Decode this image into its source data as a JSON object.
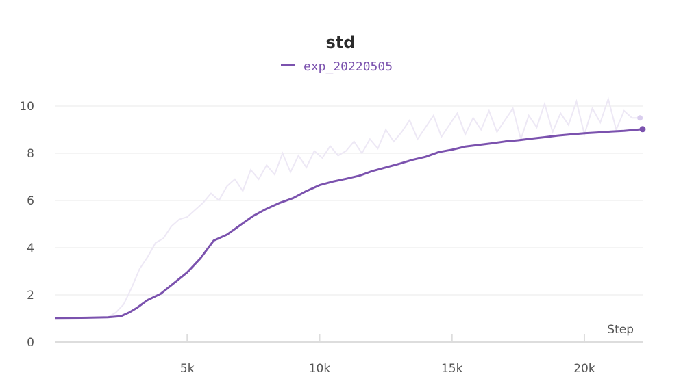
{
  "chart_data": {
    "type": "line",
    "title": "std",
    "xlabel": "Step",
    "ylabel": "",
    "xlim": [
      0,
      22200
    ],
    "ylim": [
      0,
      10
    ],
    "x_ticks": [
      5000,
      10000,
      15000,
      20000
    ],
    "x_tick_labels": [
      "5k",
      "10k",
      "15k",
      "20k"
    ],
    "y_ticks": [
      0,
      2,
      4,
      6,
      8,
      10
    ],
    "y_tick_labels": [
      "0",
      "2",
      "4",
      "6",
      "8",
      "10"
    ],
    "grid": true,
    "legend": "top-center",
    "colors": {
      "series": "#7b52ae",
      "raw": "#ede8f5",
      "raw_end": "#d9cdee"
    },
    "series": [
      {
        "name": "exp_20220505",
        "smoothed": {
          "x": [
            0,
            1000,
            2000,
            2500,
            2800,
            3100,
            3500,
            4000,
            4500,
            5000,
            5500,
            6000,
            6500,
            7000,
            7500,
            8000,
            8500,
            9000,
            9500,
            10000,
            10500,
            11000,
            11500,
            12000,
            12500,
            13000,
            13500,
            14000,
            14500,
            15000,
            15500,
            16000,
            16500,
            17000,
            17500,
            18000,
            18500,
            19000,
            19500,
            20000,
            20500,
            21000,
            21500,
            22000,
            22200
          ],
          "y": [
            1.02,
            1.03,
            1.05,
            1.1,
            1.25,
            1.45,
            1.78,
            2.05,
            2.5,
            2.95,
            3.55,
            4.3,
            4.55,
            4.95,
            5.35,
            5.65,
            5.9,
            6.1,
            6.4,
            6.65,
            6.8,
            6.92,
            7.05,
            7.25,
            7.4,
            7.55,
            7.72,
            7.85,
            8.05,
            8.15,
            8.28,
            8.35,
            8.42,
            8.5,
            8.55,
            8.62,
            8.68,
            8.75,
            8.8,
            8.85,
            8.88,
            8.92,
            8.95,
            9.0,
            9.02
          ]
        },
        "raw": {
          "x": [
            0,
            1000,
            2000,
            2300,
            2600,
            2900,
            3200,
            3500,
            3800,
            4100,
            4400,
            4700,
            5000,
            5300,
            5600,
            5900,
            6200,
            6500,
            6800,
            7100,
            7400,
            7700,
            8000,
            8300,
            8600,
            8900,
            9200,
            9500,
            9800,
            10100,
            10400,
            10700,
            11000,
            11300,
            11600,
            11900,
            12200,
            12500,
            12800,
            13100,
            13400,
            13700,
            14000,
            14300,
            14600,
            14900,
            15200,
            15500,
            15800,
            16100,
            16400,
            16700,
            17000,
            17300,
            17600,
            17900,
            18200,
            18500,
            18800,
            19100,
            19400,
            19700,
            20000,
            20300,
            20600,
            20900,
            21200,
            21500,
            21800,
            22100
          ],
          "y": [
            1.02,
            1.03,
            1.05,
            1.25,
            1.6,
            2.3,
            3.1,
            3.6,
            4.2,
            4.4,
            4.9,
            5.2,
            5.3,
            5.6,
            5.9,
            6.3,
            6.0,
            6.6,
            6.9,
            6.4,
            7.3,
            6.9,
            7.5,
            7.1,
            8.0,
            7.2,
            7.9,
            7.4,
            8.1,
            7.8,
            8.3,
            7.9,
            8.1,
            8.5,
            8.0,
            8.6,
            8.2,
            9.0,
            8.5,
            8.9,
            9.4,
            8.6,
            9.1,
            9.6,
            8.7,
            9.2,
            9.7,
            8.8,
            9.5,
            9.0,
            9.8,
            8.9,
            9.4,
            9.9,
            8.6,
            9.6,
            9.1,
            10.1,
            8.9,
            9.7,
            9.2,
            10.2,
            8.8,
            9.9,
            9.3,
            10.3,
            9.0,
            9.8,
            9.5,
            9.5
          ]
        }
      }
    ]
  }
}
